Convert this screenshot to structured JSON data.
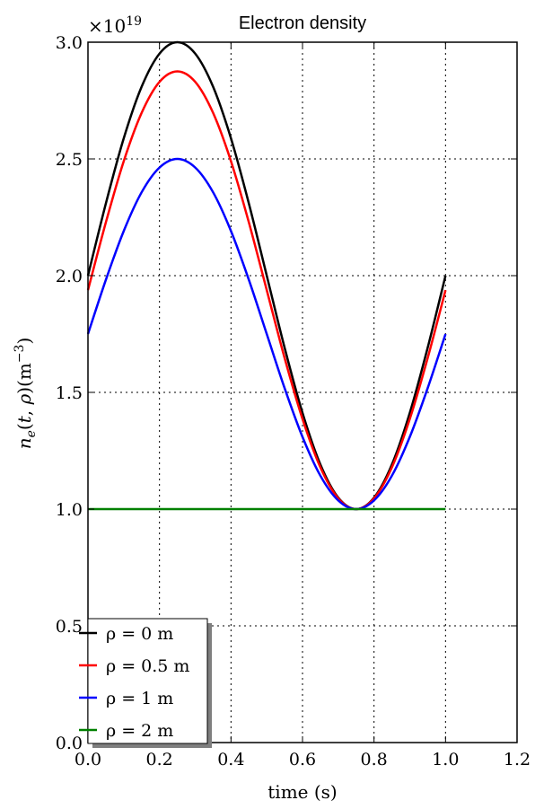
{
  "chart_data": {
    "type": "line",
    "title": "Electron density",
    "xlabel": "time (s)",
    "ylabel": "n_e(t,ρ)(m^-3)",
    "y_multiplier": "×10^19",
    "xlim": [
      0.0,
      1.2
    ],
    "ylim": [
      0.0,
      3.0
    ],
    "xticks": [
      "0.0",
      "0.2",
      "0.4",
      "0.6",
      "0.8",
      "1.0",
      "1.2"
    ],
    "yticks": [
      "0.0",
      "0.5",
      "1.0",
      "1.5",
      "2.0",
      "2.5",
      "3.0"
    ],
    "grid": true,
    "legend_position": "lower-left",
    "x": [
      0.0,
      0.05,
      0.1,
      0.15,
      0.2,
      0.25,
      0.3,
      0.35,
      0.4,
      0.45,
      0.5,
      0.55,
      0.6,
      0.65,
      0.7,
      0.75,
      0.8,
      0.85,
      0.9,
      0.95,
      1.0
    ],
    "series": [
      {
        "name": "ρ = 0 m",
        "color": "#000000",
        "values": [
          2.0,
          2.309,
          2.588,
          2.809,
          2.951,
          3.0,
          2.951,
          2.809,
          2.588,
          2.309,
          2.0,
          1.691,
          1.412,
          1.191,
          1.049,
          1.0,
          1.049,
          1.191,
          1.412,
          1.691,
          2.0
        ]
      },
      {
        "name": "ρ = 0.5 m",
        "color": "#ff0000",
        "values": [
          1.938,
          2.228,
          2.49,
          2.697,
          2.83,
          2.875,
          2.83,
          2.697,
          2.49,
          2.228,
          1.938,
          1.647,
          1.386,
          1.179,
          1.046,
          1.0,
          1.046,
          1.179,
          1.386,
          1.647,
          1.938
        ]
      },
      {
        "name": "ρ = 1 m",
        "color": "#0000ff",
        "values": [
          1.75,
          1.982,
          2.191,
          2.357,
          2.463,
          2.5,
          2.463,
          2.357,
          2.191,
          1.982,
          1.75,
          1.518,
          1.309,
          1.143,
          1.037,
          1.0,
          1.037,
          1.143,
          1.309,
          1.518,
          1.75
        ]
      },
      {
        "name": "ρ = 2 m",
        "color": "#008000",
        "values": [
          1.0,
          1.0,
          1.0,
          1.0,
          1.0,
          1.0,
          1.0,
          1.0,
          1.0,
          1.0,
          1.0,
          1.0,
          1.0,
          1.0,
          1.0,
          1.0,
          1.0,
          1.0,
          1.0,
          1.0,
          1.0
        ]
      }
    ]
  }
}
